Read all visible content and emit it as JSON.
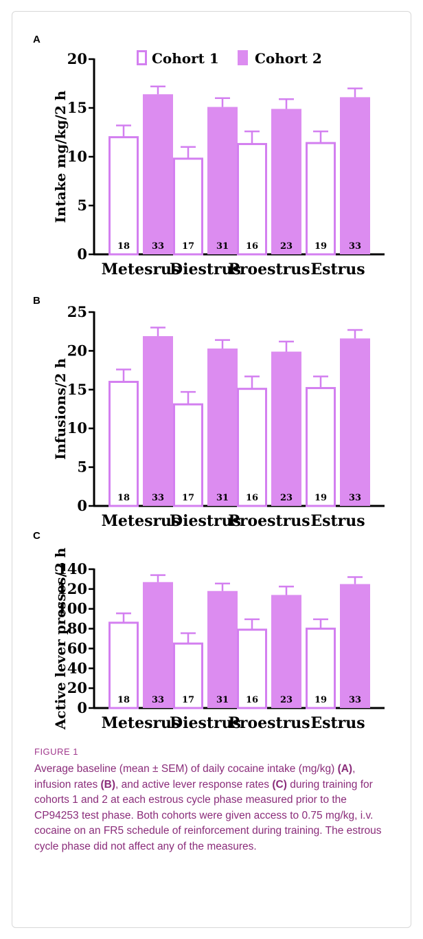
{
  "colors": {
    "cohort1_fill": "#ffffff",
    "cohort2_fill": "#dc8cf0",
    "stroke": "#d37ff0",
    "caption": "#8a2c7a"
  },
  "legend": {
    "cohort1": "Cohort 1",
    "cohort2": "Cohort 2"
  },
  "chart_data": [
    {
      "panel": "A",
      "type": "bar",
      "categories": [
        "Metesrus",
        "Diestrus",
        "Proestrus",
        "Estrus"
      ],
      "ylabel": "Intake mg/kg/2 h",
      "ylim": [
        0,
        20
      ],
      "yticks": [
        0,
        5,
        10,
        15,
        20
      ],
      "series": [
        {
          "name": "Cohort 1",
          "values": [
            12.0,
            9.8,
            11.3,
            11.4
          ],
          "sem": [
            1.2,
            1.2,
            1.3,
            1.2
          ],
          "n": [
            "18",
            "17",
            "16",
            "19"
          ]
        },
        {
          "name": "Cohort 2",
          "values": [
            16.4,
            15.1,
            14.9,
            16.1
          ],
          "sem": [
            0.8,
            0.9,
            1.0,
            0.9
          ],
          "n": [
            "33",
            "31",
            "23",
            "33"
          ]
        }
      ]
    },
    {
      "panel": "B",
      "type": "bar",
      "categories": [
        "Metesrus",
        "Diestrus",
        "Proestrus",
        "Estrus"
      ],
      "ylabel": "Infusions/2 h",
      "ylim": [
        0,
        25
      ],
      "yticks": [
        0,
        5,
        10,
        15,
        20,
        25
      ],
      "series": [
        {
          "name": "Cohort 1",
          "values": [
            16.0,
            13.1,
            15.1,
            15.2
          ],
          "sem": [
            1.6,
            1.6,
            1.6,
            1.5
          ],
          "n": [
            "18",
            "17",
            "16",
            "19"
          ]
        },
        {
          "name": "Cohort 2",
          "values": [
            21.9,
            20.3,
            19.9,
            21.6
          ],
          "sem": [
            1.1,
            1.1,
            1.3,
            1.1
          ],
          "n": [
            "33",
            "31",
            "23",
            "33"
          ]
        }
      ]
    },
    {
      "panel": "C",
      "type": "bar",
      "categories": [
        "Metesrus",
        "Diestrus",
        "Proestrus",
        "Estrus"
      ],
      "ylabel": "Active lever presses/2 h",
      "ylim": [
        0,
        140
      ],
      "yticks": [
        0,
        20,
        40,
        60,
        80,
        100,
        120,
        140
      ],
      "series": [
        {
          "name": "Cohort 1",
          "values": [
            86,
            65,
            79,
            80
          ],
          "sem": [
            9.5,
            10.5,
            10.5,
            9.5
          ],
          "n": [
            "18",
            "17",
            "16",
            "19"
          ]
        },
        {
          "name": "Cohort 2",
          "values": [
            127,
            118,
            114,
            125
          ],
          "sem": [
            7,
            7.5,
            8.5,
            7
          ],
          "n": [
            "33",
            "31",
            "23",
            "33"
          ]
        }
      ]
    }
  ],
  "caption": {
    "label": "FIGURE 1",
    "t1": "Average baseline (mean ± SEM) of daily cocaine intake (mg/kg) ",
    "a": "(A)",
    "t2": ", infusion rates ",
    "b": "(B)",
    "t3": ", and active lever response rates ",
    "c": "(C)",
    "t4": " during training for cohorts 1 and 2 at each estrous cycle phase measured prior to the CP94253 test phase. Both cohorts were given access to 0.75 mg/kg, i.v. cocaine on an FR5 schedule of reinforcement during training. The estrous cycle phase did not affect any of the measures."
  }
}
